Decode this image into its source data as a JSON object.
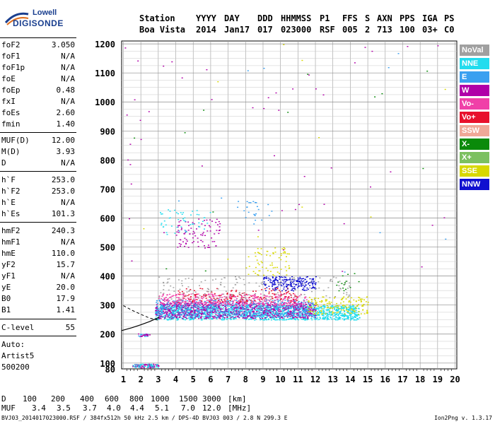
{
  "logo": {
    "line1": "Lowell",
    "line2": "DIGISONDE"
  },
  "header": {
    "labels": [
      "Station",
      "YYYY",
      "DAY",
      "DDD",
      "HHMMSS",
      "P1",
      "FFS",
      "S",
      "AXN",
      "PPS",
      "IGA",
      "PS"
    ],
    "values": [
      "Boa Vista",
      "2014",
      "Jan17",
      "017",
      "023000",
      "RSF",
      "005",
      "2",
      "713",
      "100",
      "03+",
      "C0"
    ]
  },
  "params": [
    {
      "label": "foF2",
      "value": "3.050"
    },
    {
      "label": "foF1",
      "value": "N/A"
    },
    {
      "label": "foF1p",
      "value": "N/A"
    },
    {
      "label": "foE",
      "value": "N/A"
    },
    {
      "label": "foEp",
      "value": "0.48"
    },
    {
      "label": "fxI",
      "value": "N/A"
    },
    {
      "label": "foEs",
      "value": "2.60"
    },
    {
      "label": "fmin",
      "value": "1.40"
    },
    {
      "label": "MUF(D)",
      "value": "12.00"
    },
    {
      "label": "M(D)",
      "value": "3.93"
    },
    {
      "label": "D",
      "value": "N/A"
    },
    {
      "label": "h`F",
      "value": "253.0"
    },
    {
      "label": "h`F2",
      "value": "253.0"
    },
    {
      "label": "h`E",
      "value": "N/A"
    },
    {
      "label": "h`Es",
      "value": "101.3"
    },
    {
      "label": "hmF2",
      "value": "240.3"
    },
    {
      "label": "hmF1",
      "value": "N/A"
    },
    {
      "label": "hmE",
      "value": "110.0"
    },
    {
      "label": "yF2",
      "value": "15.7"
    },
    {
      "label": "yF1",
      "value": "N/A"
    },
    {
      "label": "yE",
      "value": "20.0"
    },
    {
      "label": "B0",
      "value": "17.9"
    },
    {
      "label": "B1",
      "value": "1.41"
    },
    {
      "label": "C-level",
      "value": "55"
    }
  ],
  "autoscale": {
    "line1": "Auto:",
    "line2": "Artist5",
    "line3": "500200"
  },
  "legend": [
    {
      "label": "NoVal",
      "color": "#a0a0a0"
    },
    {
      "label": "NNE",
      "color": "#22dcee"
    },
    {
      "label": "E",
      "color": "#3aa0f0"
    },
    {
      "label": "W",
      "color": "#b000a8"
    },
    {
      "label": "Vo-",
      "color": "#f040a8"
    },
    {
      "label": "Vo+",
      "color": "#e8102c"
    },
    {
      "label": "SSW",
      "color": "#f0a898"
    },
    {
      "label": "X-",
      "color": "#0a8a0a"
    },
    {
      "label": "X+",
      "color": "#7cc060"
    },
    {
      "label": "SSE",
      "color": "#d8d800"
    },
    {
      "label": "NNW",
      "color": "#1010d0"
    }
  ],
  "muf_table": {
    "d_label": "D",
    "d_values": [
      "100",
      "200",
      "400",
      "600",
      "800",
      "1000",
      "1500",
      "3000"
    ],
    "d_unit": "[km]",
    "muf_label": "MUF",
    "muf_values": [
      "3.4",
      "3.5",
      "3.7",
      "4.0",
      "4.4",
      "5.1",
      "7.0",
      "12.0"
    ],
    "muf_unit": "[MHz]"
  },
  "file_info": "BVJ03_2014017023000.RSF / 384fx512h 50 kHz 2.5 km / DPS-4D BVJ03 003 / 2.8 N 299.3 E",
  "version": "Ion2Png v. 1.3.17",
  "chart_data": {
    "type": "scatter",
    "x_ticks": [
      1,
      2,
      3,
      4,
      5,
      6,
      7,
      8,
      9,
      10,
      11,
      12,
      13,
      14,
      15,
      16,
      17,
      18,
      19,
      20
    ],
    "y_ticks": [
      80,
      100,
      200,
      300,
      400,
      500,
      600,
      700,
      800,
      900,
      1000,
      1100,
      1200
    ],
    "xlim": [
      0.9,
      20.1
    ],
    "ylim": [
      80,
      1210
    ],
    "grid": true,
    "legend_position": "right",
    "profile_curve": {
      "x": [
        0.9,
        1.5,
        2.0,
        2.5,
        3.05
      ],
      "y": [
        212,
        222,
        232,
        243,
        258
      ]
    },
    "dashed_trace": {
      "x": [
        1.0,
        1.5,
        2.0,
        2.5,
        3.0
      ],
      "y": [
        298,
        282,
        268,
        255,
        248
      ]
    },
    "echo_regions": [
      {
        "x_range": [
          1.5,
          3.0
        ],
        "y_range": [
          85,
          98
        ],
        "color": "#b000a8",
        "density": 80
      },
      {
        "x_range": [
          1.5,
          3.0
        ],
        "y_range": [
          85,
          98
        ],
        "color": "#22dcee",
        "density": 40
      },
      {
        "x_range": [
          1.8,
          2.5
        ],
        "y_range": [
          192,
          202
        ],
        "color": "#3aa0f0",
        "density": 20
      },
      {
        "x_range": [
          1.8,
          2.5
        ],
        "y_range": [
          192,
          202
        ],
        "color": "#b000a8",
        "density": 15
      },
      {
        "x_range": [
          2.8,
          14.5
        ],
        "y_range": [
          250,
          300
        ],
        "color": "#22dcee",
        "density": 1400
      },
      {
        "x_range": [
          2.8,
          12.0
        ],
        "y_range": [
          255,
          310
        ],
        "color": "#b000a8",
        "density": 900
      },
      {
        "x_range": [
          2.8,
          12.0
        ],
        "y_range": [
          260,
          320
        ],
        "color": "#3aa0f0",
        "density": 600
      },
      {
        "x_range": [
          3.0,
          11.5
        ],
        "y_range": [
          300,
          340
        ],
        "color": "#f040a8",
        "density": 400
      },
      {
        "x_range": [
          4.0,
          11.0
        ],
        "y_range": [
          310,
          360
        ],
        "color": "#e8102c",
        "density": 150
      },
      {
        "x_range": [
          9.0,
          12.0
        ],
        "y_range": [
          350,
          400
        ],
        "color": "#1010d0",
        "density": 200
      },
      {
        "x_range": [
          8.0,
          10.5
        ],
        "y_range": [
          400,
          500
        ],
        "color": "#d8d800",
        "density": 70
      },
      {
        "x_range": [
          4.0,
          6.5
        ],
        "y_range": [
          500,
          600
        ],
        "color": "#b000a8",
        "density": 90
      },
      {
        "x_range": [
          3.0,
          6.0
        ],
        "y_range": [
          540,
          630
        ],
        "color": "#22dcee",
        "density": 50
      },
      {
        "x_range": [
          7.5,
          9.5
        ],
        "y_range": [
          580,
          660
        ],
        "color": "#3aa0f0",
        "density": 25
      },
      {
        "x_range": [
          11.5,
          15.0
        ],
        "y_range": [
          270,
          330
        ],
        "color": "#d8d800",
        "density": 150
      },
      {
        "x_range": [
          3.0,
          14.0
        ],
        "y_range": [
          320,
          400
        ],
        "color": "#a0a0a0",
        "density": 150
      },
      {
        "x_range": [
          13.0,
          14.5
        ],
        "y_range": [
          350,
          420
        ],
        "color": "#0a8a0a",
        "density": 15
      },
      {
        "x_range": [
          1.0,
          20.0
        ],
        "y_range": [
          400,
          1200
        ],
        "color": "#b000a8",
        "density": 45
      },
      {
        "x_range": [
          1.0,
          20.0
        ],
        "y_range": [
          400,
          1200
        ],
        "color": "#0a8a0a",
        "density": 12
      },
      {
        "x_range": [
          1.0,
          20.0
        ],
        "y_range": [
          400,
          1200
        ],
        "color": "#d8d800",
        "density": 10
      },
      {
        "x_range": [
          1.0,
          20.0
        ],
        "y_range": [
          400,
          1200
        ],
        "color": "#3aa0f0",
        "density": 10
      },
      {
        "x_range": [
          1.0,
          3.0
        ],
        "y_range": [
          700,
          1150
        ],
        "color": "#b000a8",
        "density": 6
      }
    ]
  }
}
